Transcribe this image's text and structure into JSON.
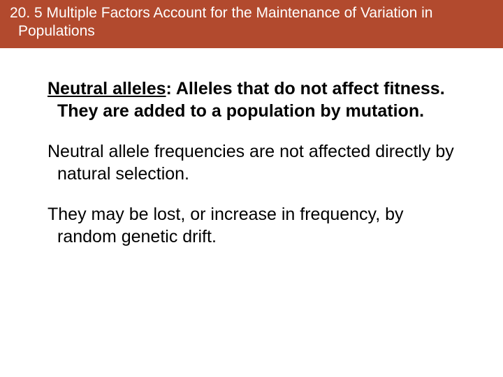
{
  "header": {
    "background_color": "#b24a2e",
    "text_color": "#ffffff",
    "fontsize": 21,
    "line1": "20. 5 Multiple Factors Account for the Maintenance of Variation in",
    "line2": "Populations"
  },
  "body": {
    "text_color": "#000000",
    "fontsize": 25,
    "paragraphs": [
      {
        "term": "Neutral alleles",
        "rest": ": Alleles that do not affect fitness. They are added to a population by mutation.",
        "bold_term": true
      },
      {
        "text": "Neutral allele frequencies are not affected directly by natural selection."
      },
      {
        "text": "They may be lost, or increase in frequency, by random genetic drift."
      }
    ]
  },
  "background_color": "#ffffff"
}
